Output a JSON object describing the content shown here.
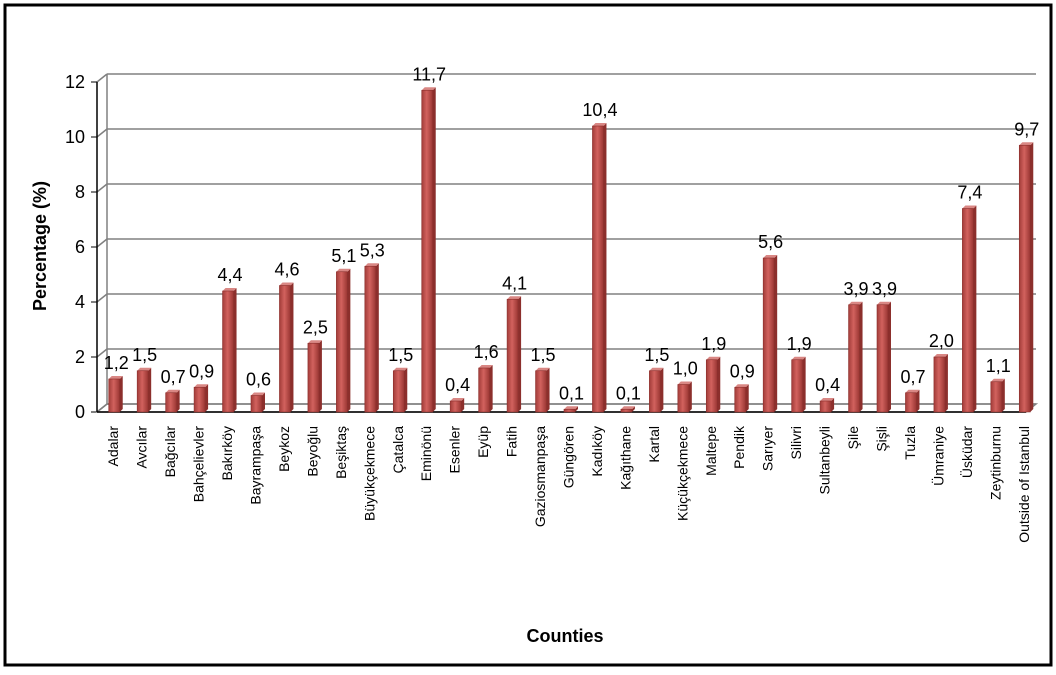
{
  "chart_data": {
    "type": "bar",
    "title": "",
    "xlabel": "Counties",
    "ylabel": "Percentage (%)",
    "ylim": [
      0,
      12
    ],
    "yticks": [
      "0",
      "2",
      "4",
      "6",
      "8",
      "10",
      "12"
    ],
    "grid": true,
    "legend": "none",
    "categories": [
      "Adalar",
      "Avcılar",
      "Bağcılar",
      "Bahçelievler",
      "Bakırköy",
      "Bayrampaşa",
      "Beykoz",
      "Beyoğlu",
      "Beşiktaş",
      "Büyükçekmece",
      "Çatalca",
      "Eminönü",
      "Esenler",
      "Eyüp",
      "Fatih",
      "Gaziosmanpaşa",
      "Güngören",
      "Kadıköy",
      "Kağıthane",
      "Kartal",
      "Küçükçekmece",
      "Maltepe",
      "Pendik",
      "Sarıyer",
      "Silivri",
      "Sultanbeyli",
      "Şile",
      "Şişli",
      "Tuzla",
      "Ümraniye",
      "Üsküdar",
      "Zeytinburnu",
      "Outside of Istanbul"
    ],
    "values": [
      1.2,
      1.5,
      0.7,
      0.9,
      4.4,
      0.6,
      4.6,
      2.5,
      5.1,
      5.3,
      1.5,
      11.7,
      0.4,
      1.6,
      4.1,
      1.5,
      0.1,
      10.4,
      0.1,
      1.5,
      1.0,
      1.9,
      0.9,
      5.6,
      1.9,
      0.4,
      3.9,
      3.9,
      0.7,
      2.0,
      7.4,
      1.1,
      9.7
    ],
    "value_labels": [
      "1,2",
      "1,5",
      "0,7",
      "0,9",
      "4,4",
      "0,6",
      "4,6",
      "2,5",
      "5,1",
      "5,3",
      "1,5",
      "11,7",
      "0,4",
      "1,6",
      "4,1",
      "1,5",
      "0,1",
      "10,4",
      "0,1",
      "1,5",
      "1,0",
      "1,9",
      "0,9",
      "5,6",
      "1,9",
      "0,4",
      "3,9",
      "3,9",
      "0,7",
      "2,0",
      "7,4",
      "1,1",
      "9,7"
    ],
    "colors": {
      "bar": "#c0504d",
      "bar_dark": "#8c2f2c",
      "bar_light": "#d98784",
      "grid": "#808080",
      "frame": "#000000",
      "text": "#000000"
    }
  }
}
